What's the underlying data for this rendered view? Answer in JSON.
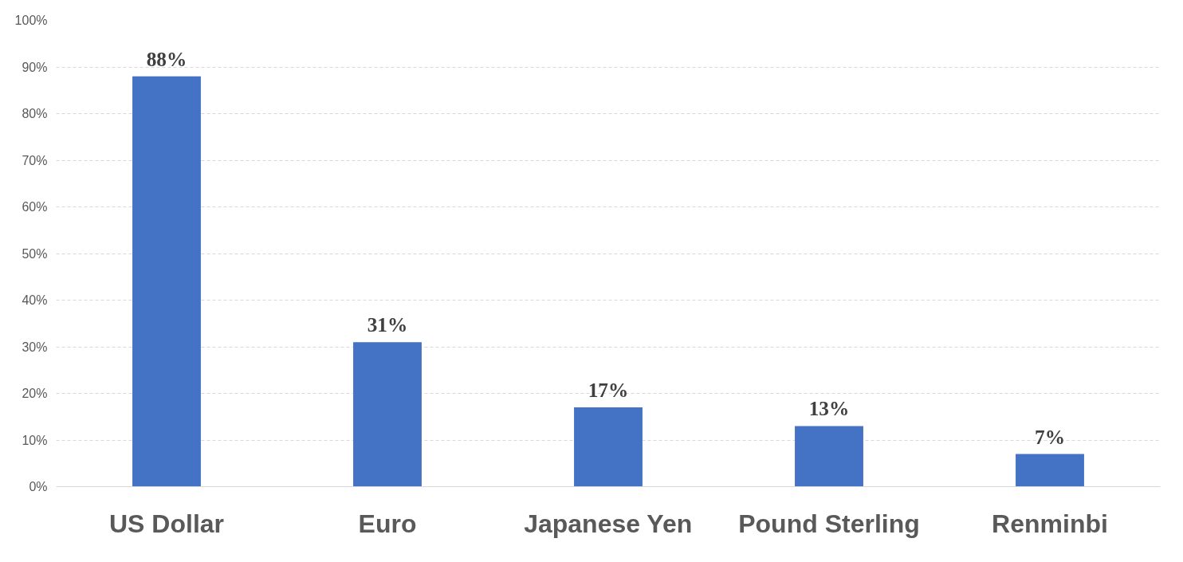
{
  "chart_data": {
    "type": "bar",
    "categories": [
      "US Dollar",
      "Euro",
      "Japanese Yen",
      "Pound Sterling",
      "Renminbi"
    ],
    "values": [
      88,
      31,
      17,
      13,
      7
    ],
    "value_labels": [
      "88%",
      "31%",
      "17%",
      "13%",
      "7%"
    ],
    "color": "#4472c4",
    "ylim": [
      0,
      100
    ],
    "yticks": [
      {
        "value": 0,
        "label": "0%"
      },
      {
        "value": 10,
        "label": "10%"
      },
      {
        "value": 20,
        "label": "20%"
      },
      {
        "value": 30,
        "label": "30%"
      },
      {
        "value": 40,
        "label": "40%"
      },
      {
        "value": 50,
        "label": "50%"
      },
      {
        "value": 60,
        "label": "60%"
      },
      {
        "value": 70,
        "label": "70%"
      },
      {
        "value": 80,
        "label": "80%"
      },
      {
        "value": 90,
        "label": "90%"
      },
      {
        "value": 100,
        "label": "100%"
      }
    ],
    "grid": "y"
  }
}
